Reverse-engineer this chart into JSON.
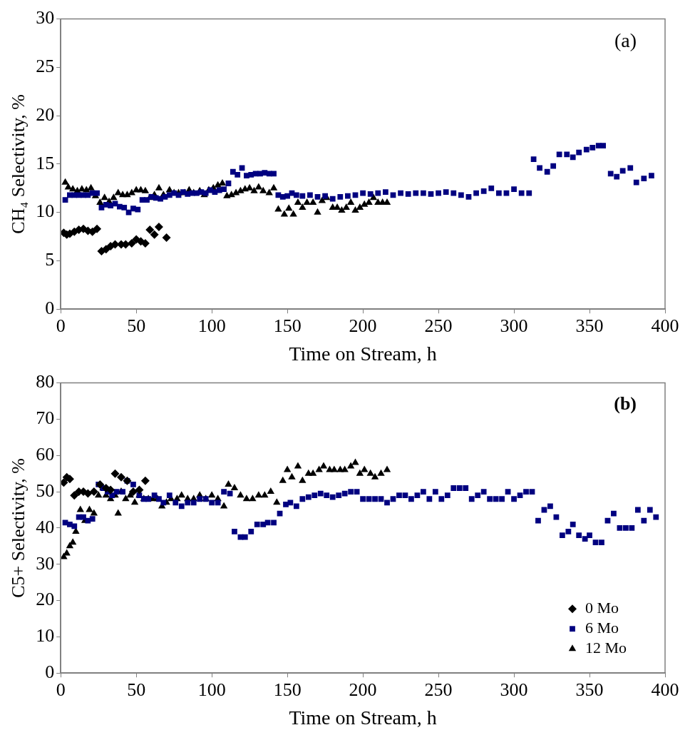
{
  "chart_data": [
    {
      "type": "scatter",
      "xlabel": "Time on Stream, h",
      "ylabel": "CH₄ Selectivity, %",
      "annotations": [
        "(a)"
      ],
      "xlim": [
        0,
        400
      ],
      "xticks": [
        0,
        50,
        100,
        150,
        200,
        250,
        300,
        350,
        400
      ],
      "ylim": [
        0,
        30
      ],
      "yticks": [
        0,
        5,
        10,
        15,
        20,
        25,
        30
      ],
      "grid": false,
      "legend": false,
      "series": [
        {
          "color": "#000000",
          "marker": "diamond",
          "x": [
            2,
            4,
            6,
            9,
            12,
            15,
            18,
            21,
            24,
            27,
            30,
            33,
            36,
            40,
            43,
            47,
            50,
            53,
            56,
            59,
            62,
            65,
            70
          ],
          "values": [
            7.9,
            7.7,
            7.8,
            8.0,
            8.2,
            8.3,
            8.1,
            8.0,
            8.3,
            6.0,
            6.2,
            6.5,
            6.7,
            6.7,
            6.7,
            6.8,
            7.2,
            7.0,
            6.8,
            8.2,
            7.7,
            8.5,
            7.4
          ]
        },
        {
          "color": "#000080",
          "marker": "square",
          "x": [
            3,
            6,
            9,
            12,
            15,
            18,
            21,
            24,
            27,
            30,
            33,
            36,
            39,
            42,
            45,
            48,
            51,
            54,
            57,
            60,
            63,
            66,
            69,
            72,
            75,
            78,
            81,
            84,
            87,
            90,
            93,
            96,
            99,
            102,
            105,
            108,
            111,
            114,
            117,
            120,
            123,
            126,
            129,
            132,
            135,
            138,
            141,
            144,
            147,
            150,
            153,
            156,
            160,
            165,
            170,
            175,
            180,
            185,
            190,
            195,
            200,
            205,
            210,
            215,
            220,
            225,
            230,
            235,
            240,
            245,
            250,
            255,
            260,
            265,
            270,
            275,
            280,
            285,
            290,
            295,
            300,
            305,
            310,
            313,
            317,
            322,
            326,
            330,
            335,
            339,
            343,
            348,
            352,
            356,
            359,
            364,
            368,
            372,
            377,
            381,
            386,
            391
          ],
          "values": [
            11.3,
            11.8,
            11.8,
            11.8,
            11.8,
            11.8,
            12.0,
            12.0,
            10.5,
            10.8,
            10.7,
            10.9,
            10.6,
            10.5,
            10.0,
            10.4,
            10.3,
            11.3,
            11.3,
            11.6,
            11.5,
            11.4,
            11.6,
            11.8,
            12.0,
            11.8,
            12.1,
            11.9,
            12.0,
            12.0,
            12.1,
            12.0,
            12.3,
            12.1,
            12.3,
            12.4,
            13.0,
            14.2,
            13.9,
            14.6,
            13.8,
            13.9,
            14.0,
            14.0,
            14.1,
            14.0,
            14.0,
            11.8,
            11.6,
            11.7,
            12.0,
            11.8,
            11.7,
            11.8,
            11.6,
            11.7,
            11.4,
            11.6,
            11.7,
            11.8,
            12.0,
            11.9,
            12.0,
            12.1,
            11.8,
            12.0,
            11.9,
            12.0,
            12.0,
            11.9,
            12.0,
            12.1,
            12.0,
            11.8,
            11.6,
            12.0,
            12.2,
            12.5,
            12.0,
            12.0,
            12.4,
            12.0,
            12.0,
            15.5,
            14.6,
            14.2,
            14.8,
            16.0,
            16.0,
            15.7,
            16.2,
            16.5,
            16.7,
            16.9,
            16.9,
            14.0,
            13.7,
            14.3,
            14.6,
            13.1,
            13.5,
            13.8
          ]
        },
        {
          "color": "#000000",
          "marker": "triangle",
          "x": [
            3,
            5,
            8,
            11,
            14,
            17,
            20,
            23,
            26,
            29,
            32,
            35,
            38,
            41,
            44,
            47,
            50,
            53,
            56,
            59,
            62,
            65,
            68,
            72,
            75,
            78,
            82,
            85,
            88,
            92,
            95,
            98,
            101,
            104,
            107,
            110,
            113,
            116,
            119,
            122,
            125,
            128,
            131,
            134,
            138,
            141,
            144,
            148,
            151,
            154,
            157,
            160,
            163,
            167,
            170,
            173,
            176,
            180,
            183,
            186,
            189,
            192,
            195,
            198,
            201,
            204,
            207,
            210,
            213,
            216
          ],
          "values": [
            13.1,
            12.6,
            12.4,
            12.2,
            12.4,
            12.3,
            12.5,
            11.7,
            11.0,
            11.5,
            11.1,
            11.5,
            12.0,
            11.8,
            11.8,
            12.0,
            12.3,
            12.3,
            12.2,
            11.5,
            11.8,
            12.5,
            11.8,
            12.3,
            12.0,
            12.0,
            12.0,
            12.3,
            12.0,
            12.2,
            11.8,
            12.3,
            12.5,
            12.8,
            13.0,
            11.7,
            11.8,
            12.0,
            12.2,
            12.4,
            12.5,
            12.2,
            12.6,
            12.2,
            12.0,
            12.5,
            10.3,
            9.8,
            10.4,
            9.8,
            11.0,
            10.5,
            11.0,
            11.0,
            10.0,
            11.2,
            11.5,
            10.5,
            10.5,
            10.2,
            10.5,
            11.0,
            10.2,
            10.5,
            10.8,
            11.0,
            11.5,
            11.0,
            11.0,
            11.0
          ]
        }
      ]
    },
    {
      "type": "scatter",
      "xlabel": "Time on Stream, h",
      "ylabel": "C5+ Selectivity, %",
      "annotations": [
        "(b)"
      ],
      "xlim": [
        0,
        400
      ],
      "xticks": [
        0,
        50,
        100,
        150,
        200,
        250,
        300,
        350,
        400
      ],
      "ylim": [
        0,
        80
      ],
      "yticks": [
        0,
        10,
        20,
        30,
        40,
        50,
        60,
        70,
        80
      ],
      "grid": false,
      "legend": "bottom right",
      "series": [
        {
          "name": "0 Mo",
          "color": "#000000",
          "marker": "diamond",
          "x": [
            2,
            4,
            6,
            9,
            12,
            15,
            18,
            22,
            26,
            30,
            33,
            36,
            40,
            44,
            48,
            52,
            56
          ],
          "values": [
            52.5,
            54,
            53.5,
            49,
            50,
            50,
            49.5,
            50,
            52,
            51,
            50.5,
            55,
            54,
            53,
            50,
            50.5,
            53
          ]
        },
        {
          "name": "6 Mo",
          "color": "#000080",
          "marker": "square",
          "x": [
            3,
            6,
            9,
            12,
            15,
            18,
            21,
            25,
            28,
            31,
            34,
            37,
            41,
            44,
            48,
            52,
            55,
            58,
            62,
            65,
            68,
            72,
            76,
            80,
            84,
            88,
            92,
            96,
            100,
            104,
            108,
            112,
            115,
            119,
            122,
            126,
            130,
            134,
            137,
            141,
            145,
            149,
            152,
            156,
            160,
            164,
            168,
            172,
            176,
            180,
            184,
            188,
            192,
            196,
            200,
            204,
            208,
            212,
            216,
            220,
            224,
            228,
            232,
            236,
            240,
            244,
            248,
            252,
            256,
            260,
            264,
            268,
            272,
            276,
            280,
            284,
            288,
            292,
            296,
            300,
            304,
            308,
            312,
            316,
            320,
            324,
            328,
            332,
            336,
            339,
            343,
            347,
            350,
            354,
            358,
            362,
            366,
            370,
            374,
            378,
            382,
            386,
            390,
            394
          ],
          "values": [
            41.5,
            41,
            40.5,
            43,
            43,
            42,
            42.5,
            52,
            51,
            50,
            49,
            50,
            50,
            53,
            52,
            49,
            48,
            48,
            49,
            48,
            47,
            49,
            47,
            46,
            47,
            47,
            48,
            48,
            47,
            47,
            50,
            49.5,
            39,
            37.5,
            37.5,
            39,
            41,
            41,
            41.5,
            41.5,
            44,
            46.5,
            47,
            46,
            48,
            48.5,
            49,
            49.5,
            49,
            48.5,
            49,
            49.5,
            50,
            50,
            48,
            48,
            48,
            48,
            47,
            48,
            49,
            49,
            48,
            49,
            50,
            48,
            50,
            48,
            49,
            51,
            51,
            51,
            48,
            49,
            50,
            48,
            48,
            48,
            50,
            48,
            49,
            50,
            50,
            42,
            45,
            46,
            43,
            38,
            39,
            41,
            38,
            37,
            38,
            36,
            36,
            42,
            44,
            40,
            40,
            40,
            45,
            42,
            45,
            43
          ]
        },
        {
          "name": "12 Mo",
          "color": "#000000",
          "marker": "triangle",
          "x": [
            2,
            4,
            6,
            8,
            10,
            13,
            16,
            19,
            22,
            25,
            28,
            30,
            33,
            36,
            38,
            40,
            43,
            46,
            49,
            52,
            55,
            58,
            61,
            64,
            67,
            70,
            73,
            77,
            80,
            84,
            88,
            92,
            96,
            100,
            104,
            108,
            111,
            115,
            119,
            123,
            127,
            131,
            135,
            139,
            143,
            147,
            150,
            153,
            157,
            160,
            164,
            167,
            171,
            174,
            178,
            181,
            185,
            188,
            192,
            195,
            198,
            201,
            205,
            208,
            212,
            216
          ],
          "values": [
            32,
            33,
            35,
            36,
            39,
            45,
            42,
            45,
            44,
            49,
            51,
            49,
            48,
            49,
            44,
            50,
            48,
            49,
            47,
            49,
            48,
            48,
            48,
            48,
            46,
            47,
            48,
            48,
            49,
            48,
            48,
            49,
            48,
            49,
            48,
            46,
            52,
            51,
            49,
            48,
            48,
            49,
            49,
            50,
            47,
            53,
            56,
            54,
            57,
            53,
            55,
            55,
            56,
            57,
            56,
            56,
            56,
            56,
            57,
            58,
            55,
            56,
            55,
            54,
            55,
            56
          ]
        }
      ]
    }
  ]
}
